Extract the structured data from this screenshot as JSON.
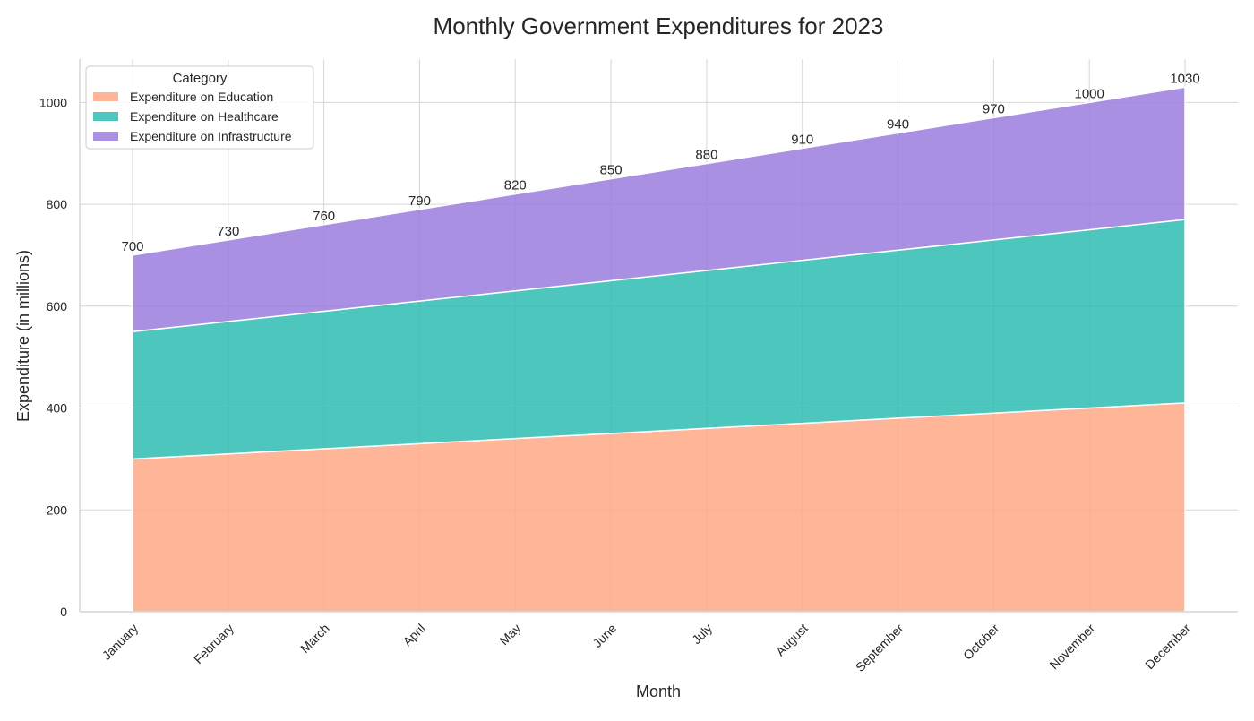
{
  "chart_data": {
    "type": "area",
    "stacked": true,
    "title": "Monthly Government Expenditures for 2023",
    "xlabel": "Month",
    "ylabel": "Expenditure (in millions)",
    "categories": [
      "January",
      "February",
      "March",
      "April",
      "May",
      "June",
      "July",
      "August",
      "September",
      "October",
      "November",
      "December"
    ],
    "series": [
      {
        "name": "Expenditure on Education",
        "color": "#ffa885",
        "values": [
          300,
          310,
          320,
          330,
          340,
          350,
          360,
          370,
          380,
          390,
          400,
          410
        ]
      },
      {
        "name": "Expenditure on Healthcare",
        "color": "#2ebcb2",
        "values": [
          250,
          260,
          270,
          280,
          290,
          300,
          310,
          320,
          330,
          340,
          350,
          360
        ]
      },
      {
        "name": "Expenditure on Infrastructure",
        "color": "#9b7ddd",
        "values": [
          150,
          160,
          170,
          180,
          190,
          200,
          210,
          220,
          230,
          240,
          250,
          260
        ]
      }
    ],
    "totals": [
      700,
      730,
      760,
      790,
      820,
      850,
      880,
      910,
      940,
      970,
      1000,
      1030
    ],
    "yticks": [
      0,
      200,
      400,
      600,
      800,
      1000
    ],
    "ylim": [
      0,
      1085
    ],
    "grid": true,
    "legend": {
      "title": "Category",
      "placement": "top-left"
    }
  }
}
